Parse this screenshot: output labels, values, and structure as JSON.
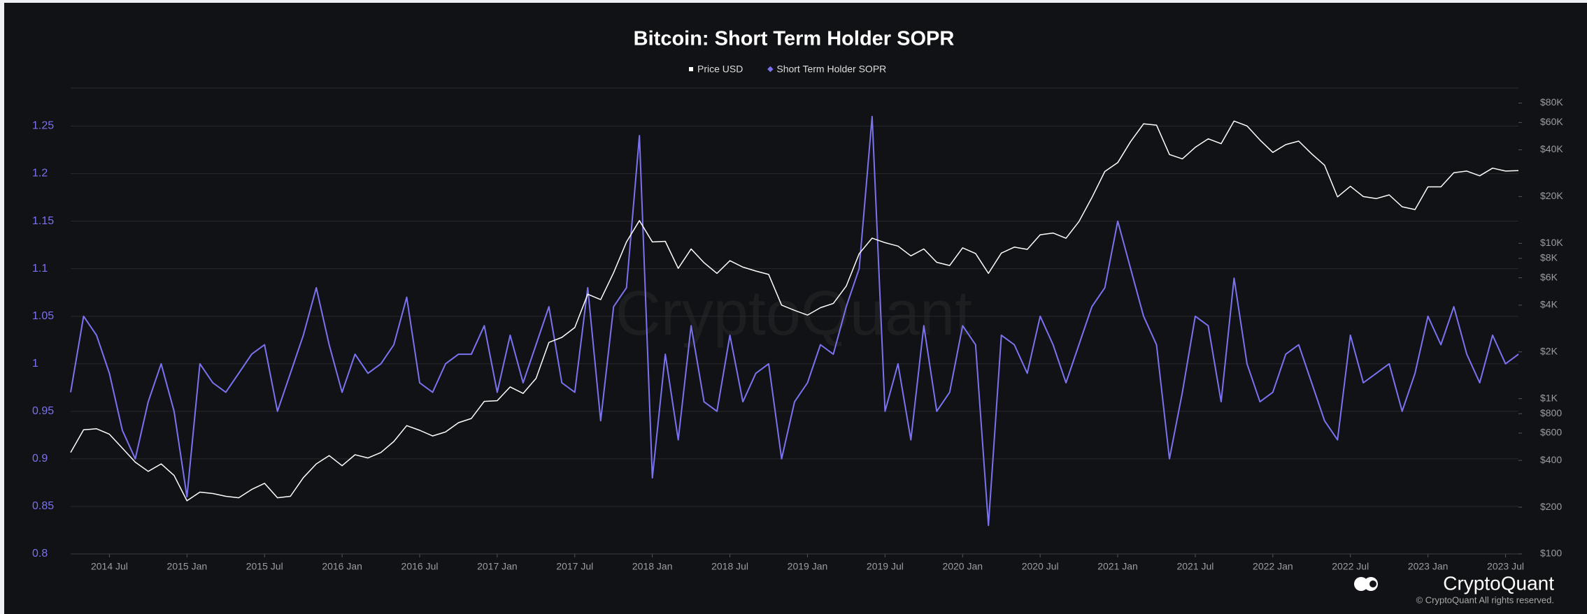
{
  "chart_data": {
    "type": "line",
    "title": "Bitcoin: Short Term Holder SOPR",
    "brand": "CryptoQuant",
    "copyright": "© CryptoQuant All rights reserved.",
    "x": [
      "2014-04",
      "2014-05",
      "2014-06",
      "2014-07",
      "2014-08",
      "2014-09",
      "2014-10",
      "2014-11",
      "2014-12",
      "2015-01",
      "2015-02",
      "2015-03",
      "2015-04",
      "2015-05",
      "2015-06",
      "2015-07",
      "2015-08",
      "2015-09",
      "2015-10",
      "2015-11",
      "2015-12",
      "2016-01",
      "2016-02",
      "2016-03",
      "2016-04",
      "2016-05",
      "2016-06",
      "2016-07",
      "2016-08",
      "2016-09",
      "2016-10",
      "2016-11",
      "2016-12",
      "2017-01",
      "2017-02",
      "2017-03",
      "2017-04",
      "2017-05",
      "2017-06",
      "2017-07",
      "2017-08",
      "2017-09",
      "2017-10",
      "2017-11",
      "2017-12",
      "2018-01",
      "2018-02",
      "2018-03",
      "2018-04",
      "2018-05",
      "2018-06",
      "2018-07",
      "2018-08",
      "2018-09",
      "2018-10",
      "2018-11",
      "2018-12",
      "2019-01",
      "2019-02",
      "2019-03",
      "2019-04",
      "2019-05",
      "2019-06",
      "2019-07",
      "2019-08",
      "2019-09",
      "2019-10",
      "2019-11",
      "2019-12",
      "2020-01",
      "2020-02",
      "2020-03",
      "2020-04",
      "2020-05",
      "2020-06",
      "2020-07",
      "2020-08",
      "2020-09",
      "2020-10",
      "2020-11",
      "2020-12",
      "2021-01",
      "2021-02",
      "2021-03",
      "2021-04",
      "2021-05",
      "2021-06",
      "2021-07",
      "2021-08",
      "2021-09",
      "2021-10",
      "2021-11",
      "2021-12",
      "2022-01",
      "2022-02",
      "2022-03",
      "2022-04",
      "2022-05",
      "2022-06",
      "2022-07",
      "2022-08",
      "2022-09",
      "2022-10",
      "2022-11",
      "2022-12",
      "2023-01",
      "2023-02",
      "2023-03",
      "2023-04",
      "2023-05",
      "2023-06",
      "2023-07",
      "2023-08"
    ],
    "series": [
      {
        "name": "Price USD",
        "color": "#ffffff",
        "axis": "y2",
        "values": [
          450,
          630,
          640,
          590,
          480,
          390,
          340,
          380,
          320,
          220,
          250,
          245,
          235,
          230,
          260,
          285,
          230,
          235,
          310,
          380,
          430,
          370,
          435,
          415,
          450,
          530,
          670,
          625,
          575,
          610,
          700,
          745,
          960,
          970,
          1190,
          1080,
          1350,
          2300,
          2480,
          2870,
          4700,
          4340,
          6470,
          10200,
          14000,
          10200,
          10300,
          6900,
          9200,
          7500,
          6400,
          7730,
          7030,
          6630,
          6300,
          4000,
          3700,
          3450,
          3850,
          4100,
          5300,
          8570,
          10800,
          10100,
          9600,
          8300,
          9200,
          7550,
          7200,
          9350,
          8600,
          6400,
          8650,
          9450,
          9140,
          11350,
          11650,
          10780,
          13800,
          19700,
          29000,
          33100,
          45200,
          58800,
          57700,
          37300,
          35000,
          41500,
          47100,
          43800,
          61300,
          57000,
          46300,
          38500,
          43200,
          45500,
          37700,
          31800,
          19900,
          23300,
          20000,
          19400,
          20500,
          17200,
          16500,
          23100,
          23100,
          28500,
          29200,
          27200,
          30500,
          29200,
          29400
        ]
      },
      {
        "name": "Short Term Holder SOPR",
        "color": "#7b72f0",
        "values": [
          0.97,
          1.05,
          1.03,
          0.99,
          0.93,
          0.9,
          0.96,
          1.0,
          0.95,
          0.86,
          1.0,
          0.98,
          0.97,
          0.99,
          1.01,
          1.02,
          0.95,
          0.99,
          1.03,
          1.08,
          1.02,
          0.97,
          1.01,
          0.99,
          1.0,
          1.02,
          1.07,
          0.98,
          0.97,
          1.0,
          1.01,
          1.01,
          1.04,
          0.97,
          1.03,
          0.98,
          1.02,
          1.06,
          0.98,
          0.97,
          1.08,
          0.94,
          1.06,
          1.08,
          1.24,
          0.88,
          1.01,
          0.92,
          1.04,
          0.96,
          0.95,
          1.03,
          0.96,
          0.99,
          1.0,
          0.9,
          0.96,
          0.98,
          1.02,
          1.01,
          1.06,
          1.1,
          1.26,
          0.95,
          1.0,
          0.92,
          1.04,
          0.95,
          0.97,
          1.04,
          1.02,
          0.83,
          1.03,
          1.02,
          0.99,
          1.05,
          1.02,
          0.98,
          1.02,
          1.06,
          1.08,
          1.15,
          1.1,
          1.05,
          1.02,
          0.9,
          0.97,
          1.05,
          1.04,
          0.96,
          1.09,
          1.0,
          0.96,
          0.97,
          1.01,
          1.02,
          0.98,
          0.94,
          0.92,
          1.03,
          0.98,
          0.99,
          1.0,
          0.95,
          0.99,
          1.05,
          1.02,
          1.06,
          1.01,
          0.98,
          1.03,
          1.0,
          1.01
        ]
      }
    ],
    "xlim": [
      "2014-04",
      "2023-08"
    ],
    "xticks": [
      {
        "value": "2014-07",
        "label": "2014 Jul"
      },
      {
        "value": "2015-01",
        "label": "2015 Jan"
      },
      {
        "value": "2015-07",
        "label": "2015 Jul"
      },
      {
        "value": "2016-01",
        "label": "2016 Jan"
      },
      {
        "value": "2016-07",
        "label": "2016 Jul"
      },
      {
        "value": "2017-01",
        "label": "2017 Jan"
      },
      {
        "value": "2017-07",
        "label": "2017 Jul"
      },
      {
        "value": "2018-01",
        "label": "2018 Jan"
      },
      {
        "value": "2018-07",
        "label": "2018 Jul"
      },
      {
        "value": "2019-01",
        "label": "2019 Jan"
      },
      {
        "value": "2019-07",
        "label": "2019 Jul"
      },
      {
        "value": "2020-01",
        "label": "2020 Jan"
      },
      {
        "value": "2020-07",
        "label": "2020 Jul"
      },
      {
        "value": "2021-01",
        "label": "2021 Jan"
      },
      {
        "value": "2021-07",
        "label": "2021 Jul"
      },
      {
        "value": "2022-01",
        "label": "2022 Jan"
      },
      {
        "value": "2022-07",
        "label": "2022 Jul"
      },
      {
        "value": "2023-01",
        "label": "2023 Jan"
      },
      {
        "value": "2023-07",
        "label": "2023 Jul"
      }
    ],
    "ylim": [
      0.8,
      1.29
    ],
    "yticks": [
      0.8,
      0.85,
      0.9,
      0.95,
      1,
      1.05,
      1.1,
      1.15,
      1.2,
      1.25
    ],
    "y2lim": [
      100,
      100000
    ],
    "y2scale": "log",
    "y2ticks": [
      {
        "value": 100,
        "label": "$100"
      },
      {
        "value": 200,
        "label": "$200"
      },
      {
        "value": 400,
        "label": "$400"
      },
      {
        "value": 600,
        "label": "$600"
      },
      {
        "value": 800,
        "label": "$800"
      },
      {
        "value": 1000,
        "label": "$1K"
      },
      {
        "value": 2000,
        "label": "$2K"
      },
      {
        "value": 4000,
        "label": "$4K"
      },
      {
        "value": 6000,
        "label": "$6K"
      },
      {
        "value": 8000,
        "label": "$8K"
      },
      {
        "value": 10000,
        "label": "$10K"
      },
      {
        "value": 20000,
        "label": "$20K"
      },
      {
        "value": 40000,
        "label": "$40K"
      },
      {
        "value": 60000,
        "label": "$60K"
      },
      {
        "value": 80000,
        "label": "$80K"
      }
    ],
    "grid": true
  }
}
